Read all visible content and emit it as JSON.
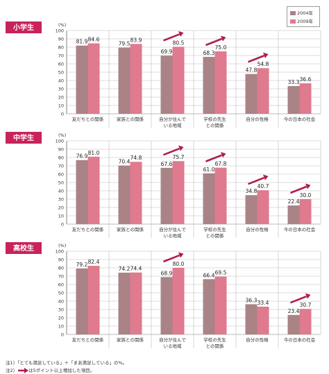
{
  "legend": [
    {
      "label": "2004年",
      "color": "#a98386"
    },
    {
      "label": "2009年",
      "color": "#e07a8e"
    }
  ],
  "colors": {
    "tag": "#c8235a",
    "arrow": "#b01d4c",
    "grid": "#bbbbbb"
  },
  "y_unit": "(%)",
  "chart_data": [
    {
      "type": "bar",
      "group": "小学生",
      "categories": [
        "友だちとの関係",
        "家族との関係",
        "自分が住んでいる地域",
        "学校の先生との関係",
        "自分の性格",
        "今の日本の社会"
      ],
      "category_lines": [
        [
          "友だちとの関係"
        ],
        [
          "家族との関係"
        ],
        [
          "自分が住んで",
          "いる地域"
        ],
        [
          "学校の先生",
          "との関係"
        ],
        [
          "自分の性格"
        ],
        [
          "今の日本の社会"
        ]
      ],
      "series": [
        {
          "name": "2004年",
          "values": [
            81.9,
            79.5,
            69.9,
            68.3,
            47.8,
            33.3
          ]
        },
        {
          "name": "2009年",
          "values": [
            84.6,
            83.9,
            80.5,
            75.0,
            54.8,
            36.6
          ]
        }
      ],
      "arrows": [
        false,
        false,
        true,
        true,
        true,
        false
      ],
      "ylim": [
        0,
        100
      ],
      "yticks": [
        0,
        10,
        20,
        30,
        40,
        50,
        60,
        70,
        80,
        90,
        100
      ]
    },
    {
      "type": "bar",
      "group": "中学生",
      "categories": [
        "友だちとの関係",
        "家族との関係",
        "自分が住んでいる地域",
        "学校の先生との関係",
        "自分の性格",
        "今の日本の社会"
      ],
      "category_lines": [
        [
          "友だちとの関係"
        ],
        [
          "家族との関係"
        ],
        [
          "自分が住んで",
          "いる地域"
        ],
        [
          "学校の先生",
          "との関係"
        ],
        [
          "自分の性格"
        ],
        [
          "今の日本の社会"
        ]
      ],
      "series": [
        {
          "name": "2004年",
          "values": [
            76.9,
            70.4,
            67.6,
            61.0,
            34.8,
            22.4
          ]
        },
        {
          "name": "2009年",
          "values": [
            81.0,
            74.8,
            75.7,
            67.8,
            40.7,
            30.0
          ]
        }
      ],
      "arrows": [
        false,
        false,
        true,
        true,
        true,
        true
      ],
      "ylim": [
        0,
        100
      ],
      "yticks": [
        0,
        10,
        20,
        30,
        40,
        50,
        60,
        70,
        80,
        90,
        100
      ]
    },
    {
      "type": "bar",
      "group": "高校生",
      "categories": [
        "友だちとの関係",
        "家族との関係",
        "自分が住んでいる地域",
        "学校の先生との関係",
        "自分の性格",
        "今の日本の社会"
      ],
      "category_lines": [
        [
          "友だちとの関係"
        ],
        [
          "家族との関係"
        ],
        [
          "自分が住んで",
          "いる地域"
        ],
        [
          "学校の先生",
          "との関係"
        ],
        [
          "自分の性格"
        ],
        [
          "今の日本の社会"
        ]
      ],
      "series": [
        {
          "name": "2004年",
          "values": [
            79.2,
            74.2,
            68.9,
            66.4,
            36.3,
            23.4
          ]
        },
        {
          "name": "2009年",
          "values": [
            82.4,
            74.4,
            80.0,
            69.5,
            33.4,
            30.7
          ]
        }
      ],
      "arrows": [
        false,
        false,
        true,
        false,
        false,
        true
      ],
      "ylim": [
        0,
        100
      ],
      "yticks": [
        0,
        10,
        20,
        30,
        40,
        50,
        60,
        70,
        80,
        90,
        100
      ]
    }
  ],
  "notes": {
    "note1": "注1）「とても満足している」＋「まあ満足している」の%。",
    "note2_prefix": "注2）",
    "note2_suffix": "は5ポイント以上増加した項目。"
  }
}
